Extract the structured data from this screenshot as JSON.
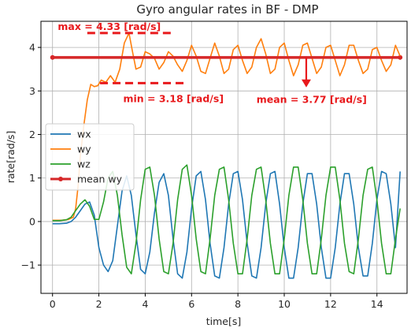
{
  "chart_data": {
    "type": "line",
    "title": "Gyro angular rates in BF - DMP",
    "xlabel": "time[s]",
    "ylabel": "rate[rad/s]",
    "xlim": [
      -0.5,
      15.3
    ],
    "ylim": [
      -1.65,
      4.6
    ],
    "xticks": [
      0,
      2,
      4,
      6,
      8,
      10,
      12,
      14
    ],
    "yticks": [
      -1,
      0,
      1,
      2,
      3,
      4
    ],
    "grid": true,
    "legend_position": "center-left",
    "series": [
      {
        "name": "wx",
        "color": "#1f77b4",
        "x": [
          0.0,
          0.3,
          0.6,
          0.8,
          1.0,
          1.2,
          1.4,
          1.6,
          1.8,
          2.0,
          2.2,
          2.4,
          2.6,
          2.8,
          3.0,
          3.2,
          3.4,
          3.6,
          3.8,
          4.0,
          4.2,
          4.4,
          4.6,
          4.8,
          5.0,
          5.2,
          5.4,
          5.6,
          5.8,
          6.0,
          6.2,
          6.4,
          6.6,
          6.8,
          7.0,
          7.2,
          7.4,
          7.6,
          7.8,
          8.0,
          8.2,
          8.4,
          8.6,
          8.8,
          9.0,
          9.2,
          9.4,
          9.6,
          9.8,
          10.0,
          10.2,
          10.4,
          10.6,
          10.8,
          11.0,
          11.2,
          11.4,
          11.6,
          11.8,
          12.0,
          12.2,
          12.4,
          12.6,
          12.8,
          13.0,
          13.2,
          13.4,
          13.6,
          13.8,
          14.0,
          14.2,
          14.4,
          14.6,
          14.8,
          15.0
        ],
        "y": [
          -0.05,
          -0.05,
          -0.04,
          0.0,
          0.1,
          0.25,
          0.4,
          0.45,
          0.15,
          -0.6,
          -1.0,
          -1.15,
          -0.9,
          -0.1,
          0.7,
          1.05,
          0.6,
          -0.3,
          -1.1,
          -1.2,
          -0.7,
          0.2,
          0.9,
          1.1,
          0.6,
          -0.4,
          -1.2,
          -1.3,
          -0.7,
          0.3,
          1.05,
          1.15,
          0.5,
          -0.5,
          -1.25,
          -1.3,
          -0.6,
          0.4,
          1.1,
          1.15,
          0.5,
          -0.5,
          -1.25,
          -1.3,
          -0.6,
          0.4,
          1.1,
          1.15,
          0.4,
          -0.6,
          -1.3,
          -1.3,
          -0.6,
          0.4,
          1.1,
          1.1,
          0.4,
          -0.6,
          -1.3,
          -1.3,
          -0.6,
          0.4,
          1.1,
          1.1,
          0.4,
          -0.6,
          -1.25,
          -1.25,
          -0.5,
          0.5,
          1.15,
          1.1,
          0.4,
          -0.6,
          1.15
        ]
      },
      {
        "name": "wy",
        "color": "#ff7f0e",
        "x": [
          0.0,
          0.4,
          0.7,
          0.9,
          1.0,
          1.1,
          1.2,
          1.35,
          1.5,
          1.65,
          1.8,
          1.95,
          2.1,
          2.3,
          2.5,
          2.7,
          2.9,
          3.1,
          3.3,
          3.45,
          3.6,
          3.8,
          4.0,
          4.2,
          4.4,
          4.6,
          4.8,
          5.0,
          5.2,
          5.4,
          5.6,
          5.8,
          6.0,
          6.2,
          6.4,
          6.6,
          6.8,
          7.0,
          7.2,
          7.4,
          7.6,
          7.8,
          8.0,
          8.2,
          8.4,
          8.6,
          8.8,
          9.0,
          9.2,
          9.4,
          9.6,
          9.8,
          10.0,
          10.2,
          10.4,
          10.6,
          10.8,
          11.0,
          11.2,
          11.4,
          11.6,
          11.8,
          12.0,
          12.2,
          12.4,
          12.6,
          12.8,
          13.0,
          13.2,
          13.4,
          13.6,
          13.8,
          14.0,
          14.2,
          14.4,
          14.6,
          14.8,
          15.0
        ],
        "y": [
          0.03,
          0.03,
          0.05,
          0.1,
          0.3,
          0.8,
          1.5,
          2.2,
          2.8,
          3.15,
          3.1,
          3.12,
          3.25,
          3.2,
          3.35,
          3.2,
          3.5,
          4.1,
          4.33,
          3.9,
          3.5,
          3.55,
          3.9,
          3.85,
          3.75,
          3.5,
          3.65,
          3.9,
          3.8,
          3.6,
          3.45,
          3.7,
          4.05,
          3.8,
          3.45,
          3.4,
          3.75,
          4.1,
          3.8,
          3.4,
          3.5,
          3.95,
          4.05,
          3.7,
          3.4,
          3.55,
          4.0,
          4.2,
          3.85,
          3.4,
          3.5,
          4.0,
          4.1,
          3.7,
          3.35,
          3.6,
          4.05,
          4.1,
          3.75,
          3.4,
          3.55,
          4.0,
          4.05,
          3.7,
          3.35,
          3.6,
          4.05,
          4.05,
          3.7,
          3.4,
          3.5,
          3.95,
          4.0,
          3.7,
          3.45,
          3.6,
          4.05,
          3.8
        ]
      },
      {
        "name": "wz",
        "color": "#2ca02c",
        "x": [
          0.0,
          0.3,
          0.6,
          0.8,
          1.0,
          1.2,
          1.4,
          1.6,
          1.8,
          2.0,
          2.2,
          2.4,
          2.6,
          2.8,
          3.0,
          3.2,
          3.4,
          3.6,
          3.8,
          4.0,
          4.2,
          4.4,
          4.6,
          4.8,
          5.0,
          5.2,
          5.4,
          5.6,
          5.8,
          6.0,
          6.2,
          6.4,
          6.6,
          6.8,
          7.0,
          7.2,
          7.4,
          7.6,
          7.8,
          8.0,
          8.2,
          8.4,
          8.6,
          8.8,
          9.0,
          9.2,
          9.4,
          9.6,
          9.8,
          10.0,
          10.2,
          10.4,
          10.6,
          10.8,
          11.0,
          11.2,
          11.4,
          11.6,
          11.8,
          12.0,
          12.2,
          12.4,
          12.6,
          12.8,
          13.0,
          13.2,
          13.4,
          13.6,
          13.8,
          14.0,
          14.2,
          14.4,
          14.6,
          14.8,
          15.0
        ],
        "y": [
          0.02,
          0.02,
          0.04,
          0.1,
          0.25,
          0.4,
          0.5,
          0.35,
          0.05,
          0.05,
          0.45,
          1.0,
          1.15,
          0.6,
          -0.3,
          -1.05,
          -1.2,
          -0.5,
          0.5,
          1.2,
          1.25,
          0.6,
          -0.4,
          -1.15,
          -1.2,
          -0.5,
          0.5,
          1.2,
          1.3,
          0.6,
          -0.4,
          -1.15,
          -1.2,
          -0.4,
          0.6,
          1.2,
          1.25,
          0.5,
          -0.5,
          -1.2,
          -1.2,
          -0.4,
          0.6,
          1.2,
          1.25,
          0.5,
          -0.5,
          -1.2,
          -1.2,
          -0.4,
          0.6,
          1.25,
          1.25,
          0.5,
          -0.5,
          -1.2,
          -1.2,
          -0.4,
          0.6,
          1.25,
          1.25,
          0.5,
          -0.5,
          -1.15,
          -1.2,
          -0.4,
          0.6,
          1.2,
          1.25,
          0.5,
          -0.5,
          -1.2,
          -1.2,
          -0.4,
          0.3
        ]
      }
    ],
    "mean_line": {
      "name": "mean wy",
      "color": "#d62728",
      "x": [
        0.0,
        15.0
      ],
      "y": 3.77
    },
    "annotations": [
      {
        "text": "max = 4.33 [rad/s]",
        "x": 2.45,
        "y": 4.47,
        "anchor": "middle"
      },
      {
        "text": "min = 3.18 [rad/s]",
        "x": 3.05,
        "y": 2.82,
        "anchor": "start"
      },
      {
        "text": "mean = 3.77 [rad/s]",
        "x": 8.8,
        "y": 2.8,
        "anchor": "start"
      }
    ],
    "dashed_markers": [
      {
        "x": [
          1.5,
          5.1
        ],
        "y": 4.33
      },
      {
        "x": [
          2.05,
          5.7
        ],
        "y": 3.18
      }
    ],
    "mean_arrow": {
      "x": 10.95,
      "y_from": 3.78,
      "y_to": 3.12
    }
  }
}
